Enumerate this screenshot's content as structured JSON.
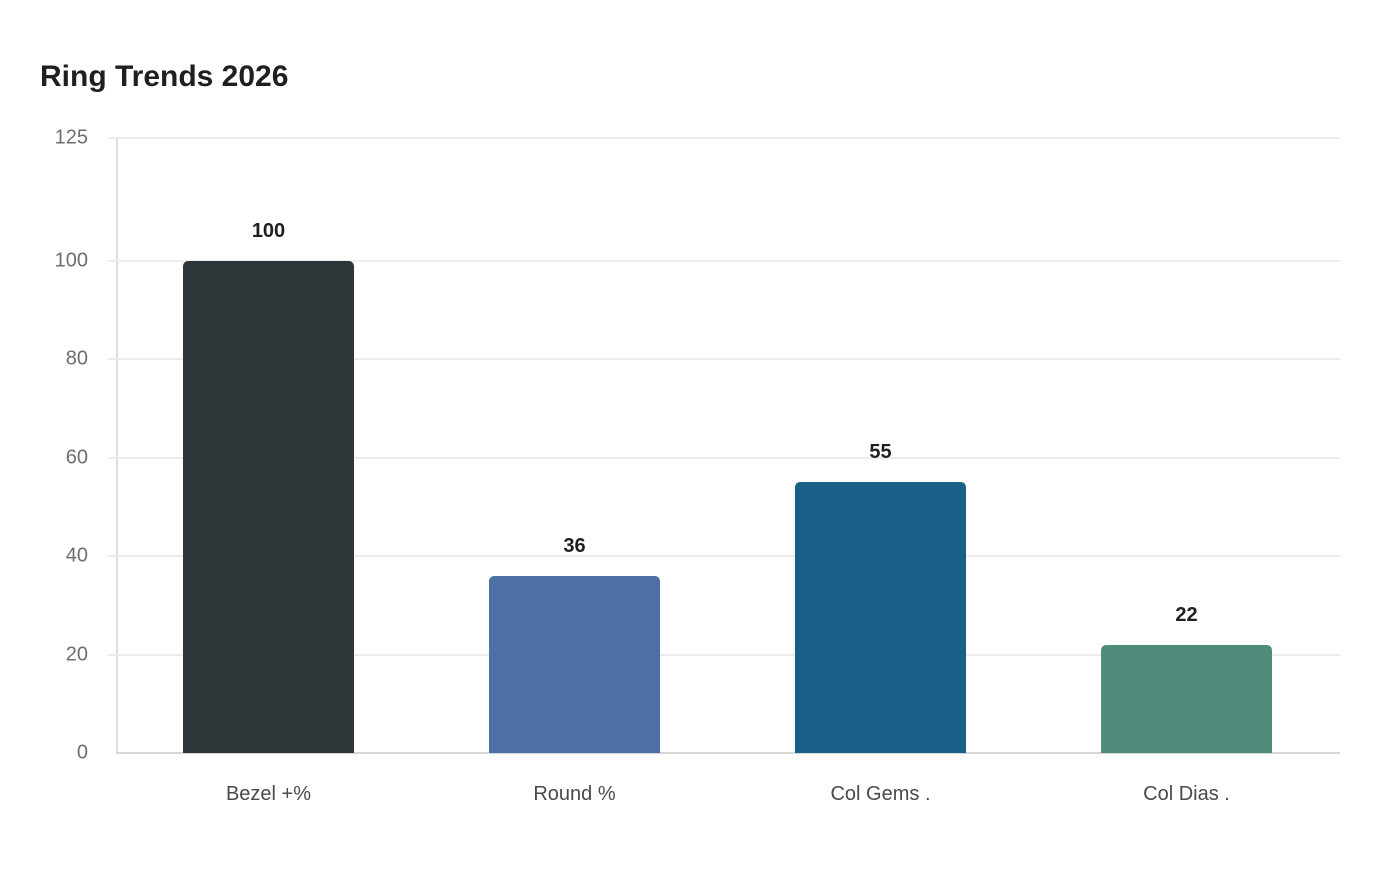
{
  "chart_data": {
    "type": "bar",
    "title": "Ring Trends 2026",
    "xlabel": "",
    "ylabel": "",
    "categories": [
      "Bezel +%",
      "Round %",
      "Col Gems .",
      "Col Dias ."
    ],
    "values": [
      100,
      36,
      55,
      22
    ],
    "value_labels": [
      "100",
      "36",
      "55",
      "22"
    ],
    "colors": [
      "#2e3538",
      "#4c6fa5",
      "#196089",
      "#4f8c7b"
    ],
    "ylim": [
      0,
      125
    ],
    "yticks": [
      0,
      20,
      40,
      60,
      80,
      100,
      125
    ],
    "ytick_labels": [
      "0",
      "20",
      "40",
      "60",
      "80",
      "100",
      "125"
    ],
    "grid": true,
    "legend": null
  }
}
